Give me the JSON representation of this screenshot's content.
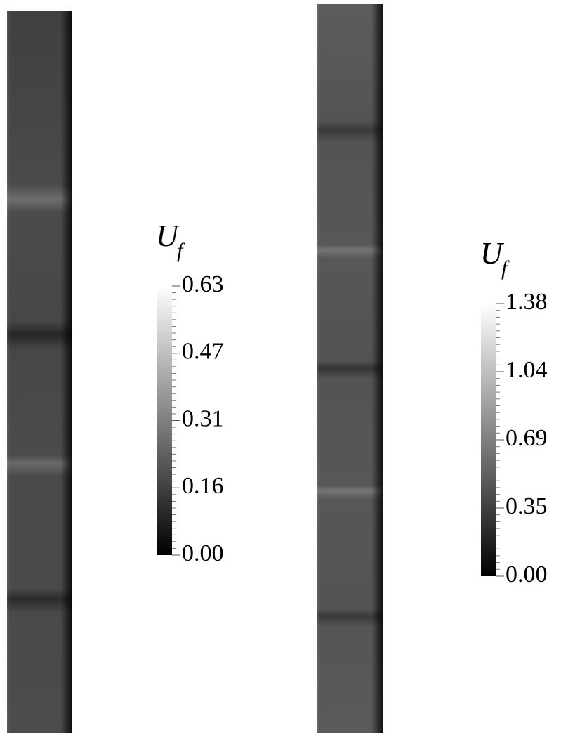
{
  "panels": [
    {
      "colorbar": {
        "label": "U",
        "subscript": "f",
        "ticks": [
          "0.63",
          "0.47",
          "0.31",
          "0.16",
          "0.00"
        ]
      }
    },
    {
      "colorbar": {
        "label": "U",
        "subscript": "f",
        "ticks": [
          "1.38",
          "1.04",
          "0.69",
          "0.35",
          "0.00"
        ]
      }
    }
  ]
}
